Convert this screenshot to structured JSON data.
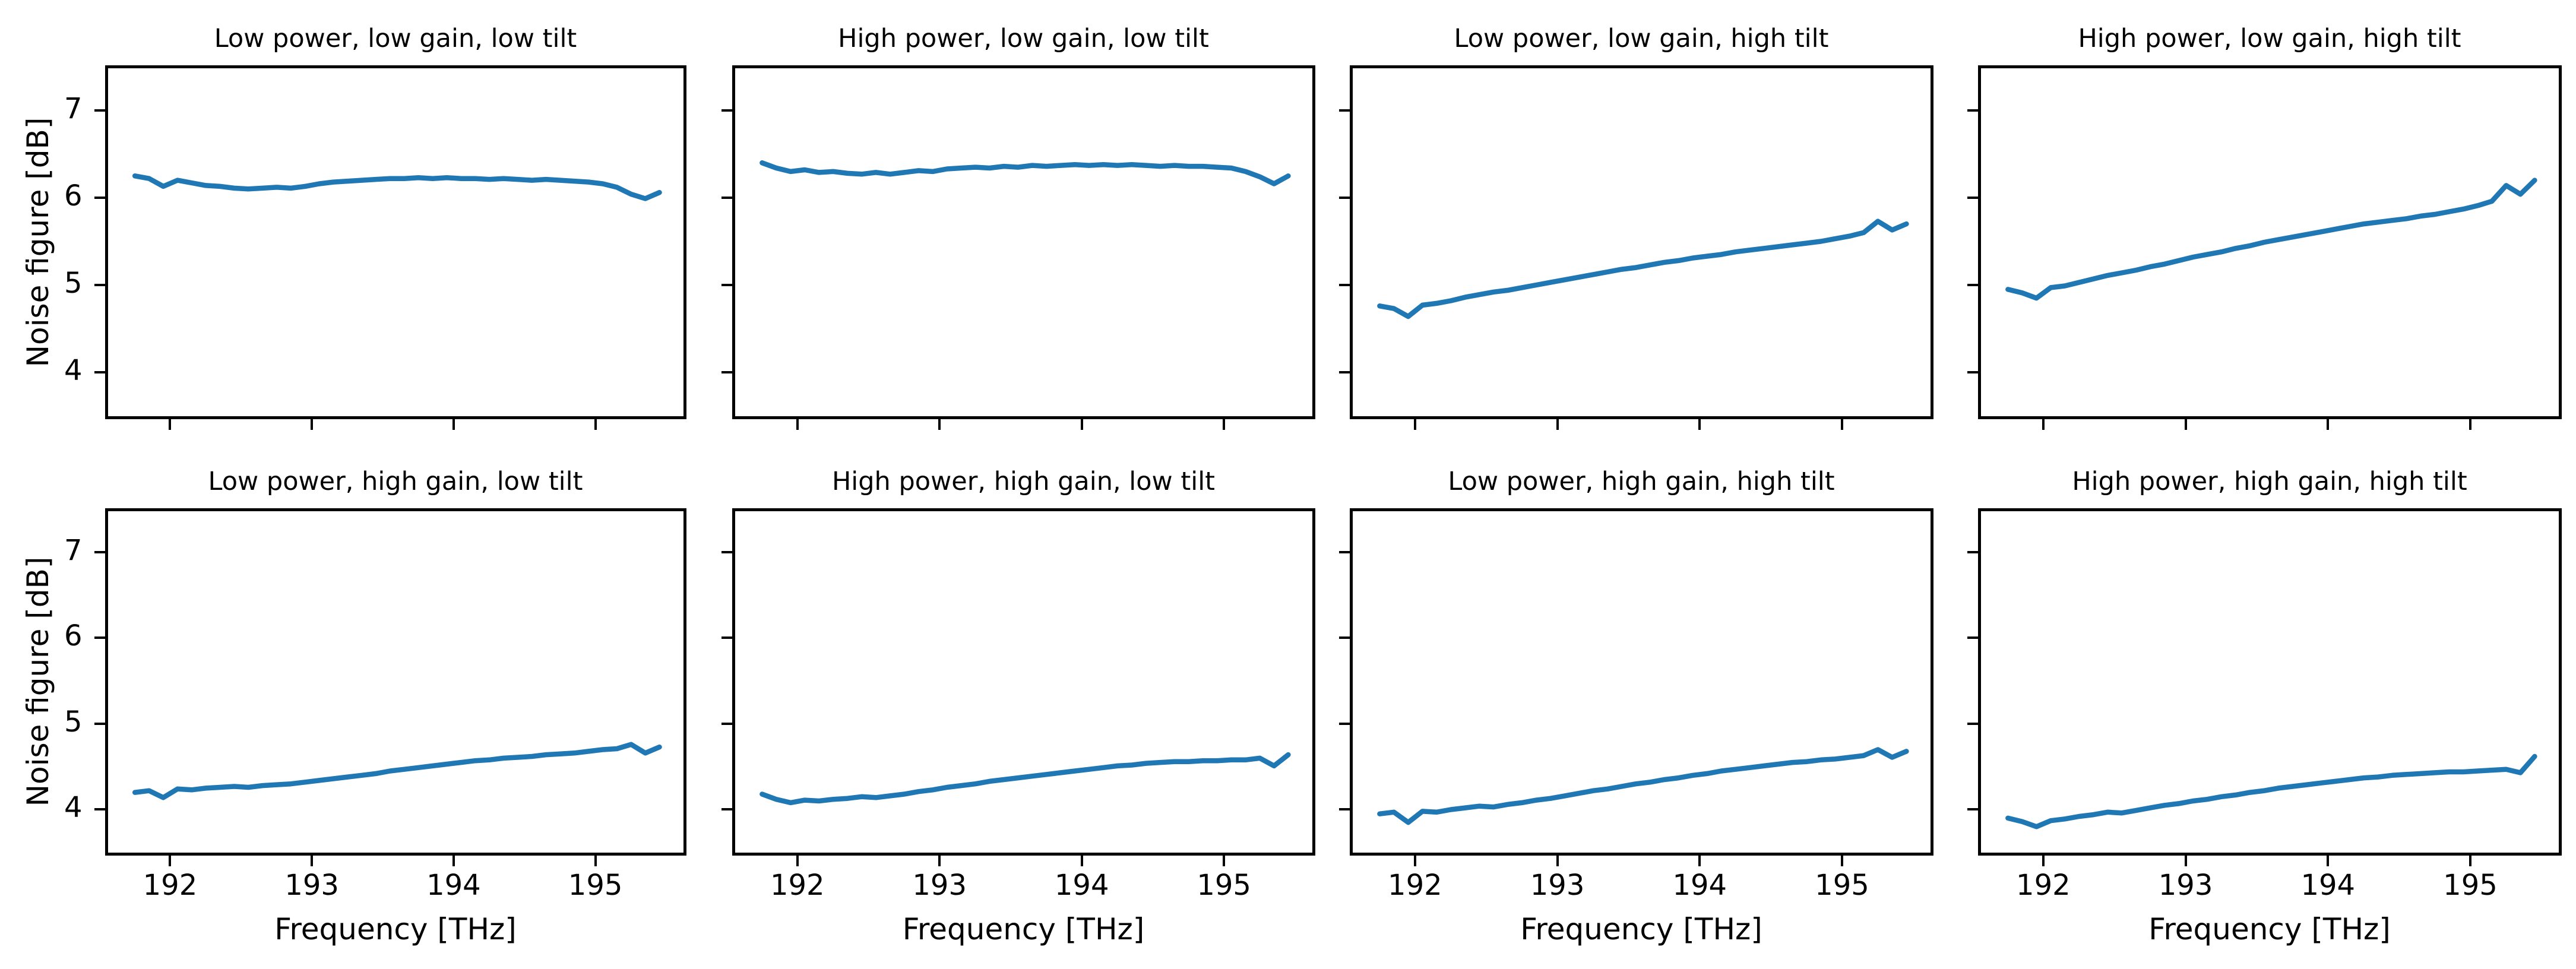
{
  "figure": {
    "background": "#ffffff",
    "text_color": "#000000"
  },
  "chart_data": {
    "type": "line",
    "x_label": "Frequency [THz]",
    "y_label": "Noise figure [dB]",
    "line_color": "#1f77b4",
    "grid": false,
    "legend": "none",
    "xlim": [
      191.55,
      195.63
    ],
    "ylim": [
      3.48,
      7.5
    ],
    "x_ticks": [
      192,
      193,
      194,
      195
    ],
    "y_ticks": [
      7,
      6,
      5,
      4
    ],
    "x": [
      191.75,
      191.85,
      191.95,
      192.05,
      192.15,
      192.25,
      192.35,
      192.45,
      192.55,
      192.65,
      192.75,
      192.85,
      192.95,
      193.05,
      193.15,
      193.25,
      193.35,
      193.45,
      193.55,
      193.65,
      193.75,
      193.85,
      193.95,
      194.05,
      194.15,
      194.25,
      194.35,
      194.45,
      194.55,
      194.65,
      194.75,
      194.85,
      194.95,
      195.05,
      195.15,
      195.25,
      195.35,
      195.45
    ],
    "subplots": [
      {
        "row": 0,
        "col": 0,
        "title": "Low power, low gain, low tilt",
        "y": [
          6.25,
          6.22,
          6.13,
          6.2,
          6.17,
          6.14,
          6.13,
          6.11,
          6.1,
          6.11,
          6.12,
          6.11,
          6.13,
          6.16,
          6.18,
          6.19,
          6.2,
          6.21,
          6.22,
          6.22,
          6.23,
          6.22,
          6.23,
          6.22,
          6.22,
          6.21,
          6.22,
          6.21,
          6.2,
          6.21,
          6.2,
          6.19,
          6.18,
          6.16,
          6.12,
          6.04,
          5.99,
          6.06
        ]
      },
      {
        "row": 0,
        "col": 1,
        "title": "High power, low gain, low tilt",
        "y": [
          6.4,
          6.34,
          6.3,
          6.32,
          6.29,
          6.3,
          6.28,
          6.27,
          6.29,
          6.27,
          6.29,
          6.31,
          6.3,
          6.33,
          6.34,
          6.35,
          6.34,
          6.36,
          6.35,
          6.37,
          6.36,
          6.37,
          6.38,
          6.37,
          6.38,
          6.37,
          6.38,
          6.37,
          6.36,
          6.37,
          6.36,
          6.36,
          6.35,
          6.34,
          6.3,
          6.24,
          6.16,
          6.25
        ]
      },
      {
        "row": 0,
        "col": 2,
        "title": "Low power, low gain, high tilt",
        "y": [
          4.76,
          4.73,
          4.64,
          4.77,
          4.79,
          4.82,
          4.86,
          4.89,
          4.92,
          4.94,
          4.97,
          5.0,
          5.03,
          5.06,
          5.09,
          5.12,
          5.15,
          5.18,
          5.2,
          5.23,
          5.26,
          5.28,
          5.31,
          5.33,
          5.35,
          5.38,
          5.4,
          5.42,
          5.44,
          5.46,
          5.48,
          5.5,
          5.53,
          5.56,
          5.6,
          5.73,
          5.63,
          5.7
        ]
      },
      {
        "row": 0,
        "col": 3,
        "title": "High power, low gain, high tilt",
        "y": [
          4.95,
          4.91,
          4.85,
          4.97,
          4.99,
          5.03,
          5.07,
          5.11,
          5.14,
          5.17,
          5.21,
          5.24,
          5.28,
          5.32,
          5.35,
          5.38,
          5.42,
          5.45,
          5.49,
          5.52,
          5.55,
          5.58,
          5.61,
          5.64,
          5.67,
          5.7,
          5.72,
          5.74,
          5.76,
          5.79,
          5.81,
          5.84,
          5.87,
          5.91,
          5.96,
          6.14,
          6.04,
          6.2
        ]
      },
      {
        "row": 1,
        "col": 0,
        "title": "Low power, high gain, low tilt",
        "y": [
          4.2,
          4.22,
          4.14,
          4.24,
          4.23,
          4.25,
          4.26,
          4.27,
          4.26,
          4.28,
          4.29,
          4.3,
          4.32,
          4.34,
          4.36,
          4.38,
          4.4,
          4.42,
          4.45,
          4.47,
          4.49,
          4.51,
          4.53,
          4.55,
          4.57,
          4.58,
          4.6,
          4.61,
          4.62,
          4.64,
          4.65,
          4.66,
          4.68,
          4.7,
          4.71,
          4.76,
          4.66,
          4.73
        ]
      },
      {
        "row": 1,
        "col": 1,
        "title": "High power, high gain, low tilt",
        "y": [
          4.18,
          4.12,
          4.08,
          4.11,
          4.1,
          4.12,
          4.13,
          4.15,
          4.14,
          4.16,
          4.18,
          4.21,
          4.23,
          4.26,
          4.28,
          4.3,
          4.33,
          4.35,
          4.37,
          4.39,
          4.41,
          4.43,
          4.45,
          4.47,
          4.49,
          4.51,
          4.52,
          4.54,
          4.55,
          4.56,
          4.56,
          4.57,
          4.57,
          4.58,
          4.58,
          4.6,
          4.51,
          4.64
        ]
      },
      {
        "row": 1,
        "col": 2,
        "title": "Low power, high gain, high tilt",
        "y": [
          3.95,
          3.97,
          3.85,
          3.98,
          3.97,
          4.0,
          4.02,
          4.04,
          4.03,
          4.06,
          4.08,
          4.11,
          4.13,
          4.16,
          4.19,
          4.22,
          4.24,
          4.27,
          4.3,
          4.32,
          4.35,
          4.37,
          4.4,
          4.42,
          4.45,
          4.47,
          4.49,
          4.51,
          4.53,
          4.55,
          4.56,
          4.58,
          4.59,
          4.61,
          4.63,
          4.7,
          4.61,
          4.68
        ]
      },
      {
        "row": 1,
        "col": 3,
        "title": "High power, high gain, high tilt",
        "y": [
          3.9,
          3.86,
          3.8,
          3.87,
          3.89,
          3.92,
          3.94,
          3.97,
          3.96,
          3.99,
          4.02,
          4.05,
          4.07,
          4.1,
          4.12,
          4.15,
          4.17,
          4.2,
          4.22,
          4.25,
          4.27,
          4.29,
          4.31,
          4.33,
          4.35,
          4.37,
          4.38,
          4.4,
          4.41,
          4.42,
          4.43,
          4.44,
          4.44,
          4.45,
          4.46,
          4.47,
          4.43,
          4.62
        ]
      }
    ]
  }
}
